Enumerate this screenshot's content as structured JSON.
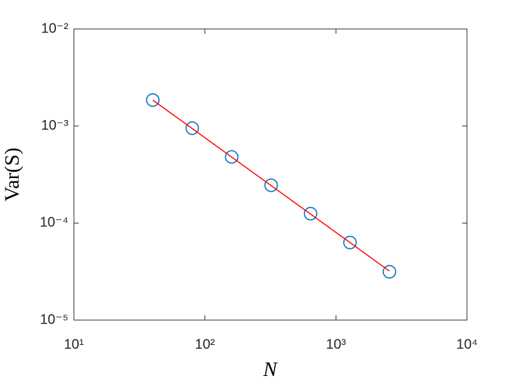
{
  "chart_data": {
    "type": "scatter",
    "xlabel": "N",
    "ylabel": "Var(S)",
    "log_x": true,
    "log_y": true,
    "xlim": [
      10,
      10000
    ],
    "ylim": [
      1e-05,
      0.01
    ],
    "xticks": [
      {
        "value": 10,
        "label": "10¹"
      },
      {
        "value": 100,
        "label": "10²"
      },
      {
        "value": 1000,
        "label": "10³"
      },
      {
        "value": 10000,
        "label": "10⁴"
      }
    ],
    "yticks": [
      {
        "value": 1e-05,
        "label": "10⁻⁵"
      },
      {
        "value": 0.0001,
        "label": "10⁻⁴"
      },
      {
        "value": 0.001,
        "label": "10⁻³"
      },
      {
        "value": 0.01,
        "label": "10⁻²"
      }
    ],
    "series": [
      {
        "type": "scatter",
        "color": "#0072bd",
        "x": [
          40,
          80,
          160,
          320,
          640,
          1280,
          2560
        ],
        "values": [
          0.00185,
          0.00095,
          0.00048,
          0.000245,
          0.000125,
          6.3e-05,
          3.15e-05
        ]
      },
      {
        "type": "line",
        "color": "#ff0000",
        "x": [
          40,
          2560
        ],
        "values": [
          0.00185,
          3.2e-05
        ]
      }
    ]
  }
}
